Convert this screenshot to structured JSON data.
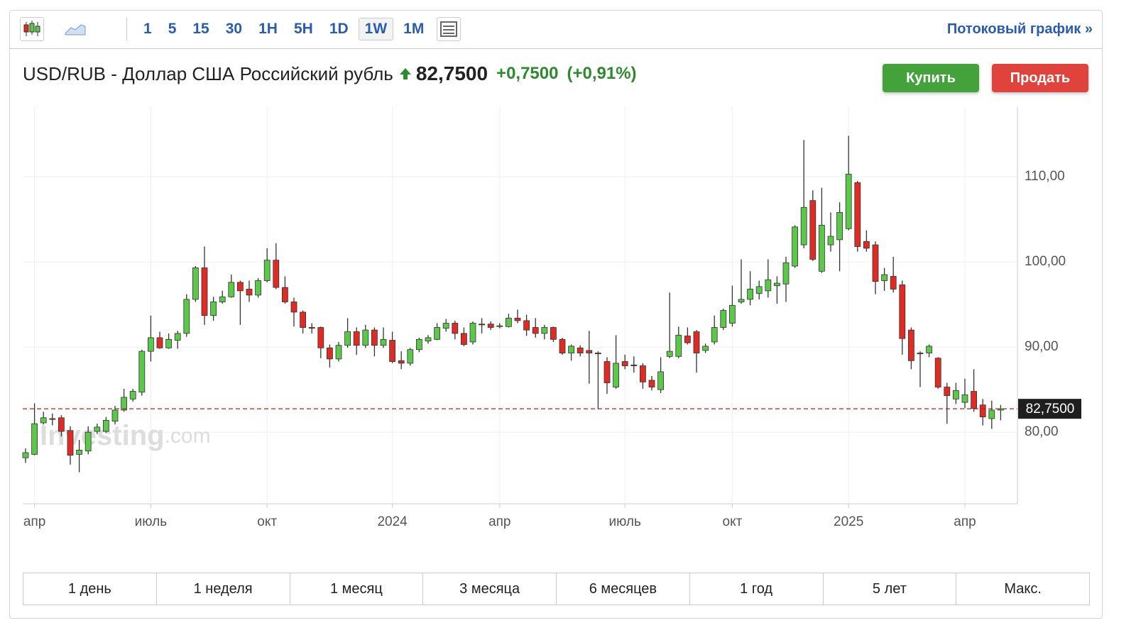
{
  "toolbar": {
    "intervals": [
      "1",
      "5",
      "15",
      "30",
      "1H",
      "5H",
      "1D",
      "1W",
      "1M"
    ],
    "stream_link": "Потоковый график »"
  },
  "header": {
    "title": "USD/RUB - Доллар США Российский рубль",
    "price": "82,7500",
    "change": "+0,7500",
    "change_pct": "(+0,91%)",
    "buy": "Купить",
    "sell": "Продать"
  },
  "watermark": [
    "Investing",
    ".com"
  ],
  "ranges": [
    "1 день",
    "1 неделя",
    "1 месяц",
    "3 месяца",
    "6 месяцев",
    "1 год",
    "5 лет",
    "Макс."
  ],
  "chart_data": {
    "type": "candlestick",
    "up_color": "#5bc84a",
    "down_color": "#e02a24",
    "grid": true,
    "ylim": [
      71.6,
      118.25
    ],
    "yticks": [
      {
        "value": 80,
        "label": "80,00"
      },
      {
        "value": 90,
        "label": "90,00"
      },
      {
        "value": 100,
        "label": "100,00"
      },
      {
        "value": 110,
        "label": "110,00"
      }
    ],
    "last": 82.75,
    "last_color": "#b02020",
    "categories": [
      null,
      "апр",
      null,
      null,
      null,
      null,
      null,
      null,
      null,
      null,
      null,
      null,
      null,
      null,
      "июль",
      null,
      null,
      null,
      null,
      null,
      null,
      null,
      null,
      null,
      null,
      null,
      null,
      "окт",
      null,
      null,
      null,
      null,
      null,
      null,
      null,
      null,
      null,
      null,
      null,
      null,
      null,
      "2024",
      null,
      null,
      null,
      null,
      null,
      null,
      null,
      null,
      null,
      null,
      null,
      "апр",
      null,
      null,
      null,
      null,
      null,
      null,
      null,
      null,
      null,
      null,
      null,
      null,
      null,
      "июль",
      null,
      null,
      null,
      null,
      null,
      null,
      null,
      null,
      null,
      null,
      null,
      "окт",
      null,
      null,
      null,
      null,
      null,
      null,
      null,
      null,
      null,
      null,
      null,
      null,
      "2025",
      null,
      null,
      null,
      null,
      null,
      null,
      null,
      null,
      null,
      null,
      null,
      null,
      "апр",
      null,
      null,
      null,
      null
    ],
    "open": [
      77.0,
      77.4,
      81.1,
      81.6,
      81.7,
      80.2,
      77.4,
      77.8,
      80.1,
      80.1,
      81.3,
      82.6,
      83.9,
      84.7,
      89.5,
      91.1,
      89.9,
      90.8,
      91.6,
      95.6,
      99.3,
      93.7,
      95.3,
      95.9,
      97.6,
      96.8,
      96.1,
      97.8,
      100.2,
      97.0,
      95.3,
      94.1,
      92.3,
      92.3,
      89.9,
      88.6,
      90.2,
      91.8,
      90.2,
      92.0,
      90.2,
      90.8,
      88.4,
      88.1,
      89.7,
      90.7,
      90.9,
      92.2,
      92.8,
      91.6,
      90.6,
      92.7,
      92.7,
      92.4,
      92.4,
      93.4,
      93.1,
      92.3,
      91.6,
      92.3,
      90.9,
      89.3,
      89.9,
      89.6,
      89.3,
      88.3,
      85.3,
      88.3,
      87.9,
      87.8,
      86.1,
      85.0,
      88.9,
      88.9,
      91.3,
      91.8,
      89.6,
      90.6,
      92.3,
      92.8,
      95.3,
      95.6,
      96.3,
      96.6,
      97.2,
      97.4,
      99.5,
      102.0,
      107.2,
      98.9,
      102.0,
      102.6,
      103.9,
      109.3,
      102.4,
      102.0,
      97.8,
      98.3,
      97.3,
      92.0,
      89.3,
      89.3,
      88.7,
      85.3,
      83.9,
      83.5,
      84.8,
      83.2,
      81.6,
      82.6
    ],
    "high": [
      78.1,
      83.4,
      82.4,
      82.2,
      82.0,
      80.7,
      79.1,
      80.7,
      81.0,
      81.8,
      83.1,
      85.1,
      85.1,
      89.7,
      93.7,
      91.8,
      91.6,
      91.9,
      96.2,
      99.5,
      101.8,
      95.9,
      96.6,
      98.5,
      97.8,
      97.8,
      98.1,
      101.6,
      102.2,
      98.3,
      95.8,
      94.3,
      92.8,
      92.4,
      90.3,
      90.6,
      93.4,
      92.3,
      92.6,
      92.3,
      92.3,
      91.8,
      89.5,
      89.9,
      91.1,
      91.4,
      92.8,
      93.3,
      93.1,
      92.3,
      93.0,
      93.4,
      93.0,
      92.8,
      93.9,
      94.4,
      93.8,
      93.4,
      92.6,
      92.4,
      91.1,
      90.3,
      90.2,
      91.9,
      89.5,
      88.8,
      91.4,
      89.1,
      88.9,
      88.1,
      86.6,
      88.8,
      96.4,
      92.4,
      92.3,
      92.0,
      90.4,
      93.7,
      94.5,
      97.2,
      100.3,
      98.9,
      97.8,
      100.3,
      98.3,
      100.6,
      104.3,
      114.3,
      108.4,
      108.7,
      105.8,
      107.0,
      114.8,
      109.5,
      103.7,
      102.4,
      99.3,
      100.6,
      97.8,
      92.3,
      89.5,
      90.3,
      88.8,
      85.8,
      85.8,
      86.3,
      87.4,
      83.9,
      83.7,
      83.2
    ],
    "low": [
      76.4,
      77.3,
      80.9,
      80.8,
      79.5,
      76.2,
      75.3,
      77.4,
      79.8,
      79.9,
      80.9,
      82.4,
      83.6,
      84.3,
      88.3,
      89.8,
      89.8,
      89.8,
      91.2,
      95.3,
      92.6,
      93.1,
      95.1,
      95.8,
      92.6,
      95.3,
      95.8,
      97.6,
      96.8,
      95.1,
      92.4,
      91.6,
      91.6,
      88.7,
      87.6,
      88.3,
      89.9,
      89.1,
      89.9,
      88.9,
      89.9,
      88.1,
      87.4,
      87.8,
      89.4,
      90.4,
      90.8,
      91.8,
      90.9,
      90.1,
      90.3,
      91.6,
      92.0,
      92.2,
      92.3,
      92.8,
      91.3,
      91.1,
      90.9,
      90.6,
      89.1,
      88.4,
      88.9,
      85.7,
      82.7,
      84.5,
      85.1,
      87.4,
      87.0,
      85.1,
      84.9,
      84.6,
      88.7,
      88.7,
      90.3,
      87.0,
      89.3,
      90.3,
      92.0,
      92.4,
      95.1,
      94.9,
      95.6,
      95.8,
      95.1,
      95.3,
      99.3,
      101.6,
      100.1,
      98.7,
      101.2,
      98.9,
      103.7,
      101.2,
      101.2,
      96.2,
      96.6,
      96.4,
      89.1,
      87.4,
      85.3,
      88.8,
      85.1,
      81.0,
      83.3,
      82.8,
      82.4,
      80.8,
      80.4,
      81.4
    ],
    "close": [
      77.6,
      81.0,
      81.7,
      81.5,
      80.1,
      77.3,
      77.9,
      80.0,
      80.6,
      81.4,
      82.6,
      84.1,
      84.8,
      89.5,
      91.1,
      89.9,
      90.9,
      91.6,
      95.6,
      99.3,
      93.7,
      95.3,
      95.9,
      97.6,
      96.6,
      96.1,
      97.8,
      100.2,
      97.0,
      95.3,
      94.1,
      92.3,
      92.2,
      89.9,
      88.6,
      90.2,
      91.8,
      90.2,
      92.0,
      90.2,
      90.9,
      88.3,
      88.1,
      89.7,
      90.9,
      91.1,
      92.3,
      92.8,
      91.6,
      90.3,
      92.8,
      92.6,
      92.3,
      92.5,
      93.4,
      93.1,
      92.0,
      91.6,
      92.3,
      90.9,
      89.3,
      90.1,
      89.3,
      89.3,
      89.2,
      85.8,
      88.1,
      87.8,
      87.8,
      85.9,
      85.3,
      87.1,
      89.5,
      91.4,
      90.5,
      89.3,
      90.1,
      92.3,
      94.3,
      94.9,
      95.6,
      96.8,
      97.1,
      97.9,
      97.5,
      99.9,
      104.1,
      106.4,
      100.3,
      104.3,
      103.0,
      105.8,
      110.3,
      101.8,
      101.6,
      97.7,
      98.5,
      96.8,
      91.0,
      88.4,
      89.2,
      90.1,
      85.3,
      84.3,
      84.9,
      84.4,
      82.8,
      81.8,
      82.6,
      82.75
    ]
  }
}
